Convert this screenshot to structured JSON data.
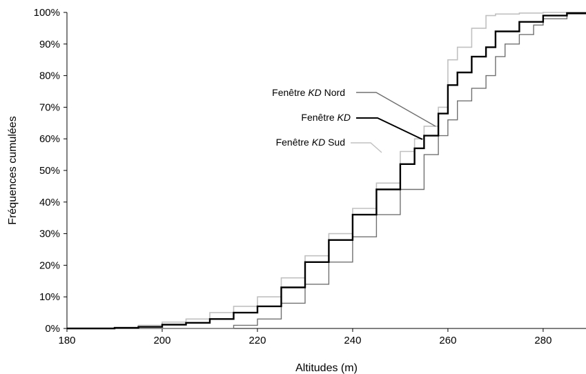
{
  "chart_data": {
    "type": "line",
    "title": "",
    "xlabel": "Altitudes (m)",
    "ylabel": "Fréquences cumulées",
    "xlim": [
      180,
      289
    ],
    "ylim": [
      0,
      100
    ],
    "x_ticks": [
      "180",
      "200",
      "220",
      "240",
      "260",
      "280"
    ],
    "y_ticks": [
      "0%",
      "10%",
      "20%",
      "30%",
      "40%",
      "50%",
      "60%",
      "70%",
      "80%",
      "90%",
      "100%"
    ],
    "grid": false,
    "legend": "inline-labels",
    "series": [
      {
        "name": "Fenêtre KD Nord",
        "label_parts": [
          "Fenêtre ",
          "KD",
          " Nord"
        ],
        "color": "#707070",
        "x": [
          180,
          205,
          209,
          215,
          220,
          225,
          230,
          235,
          240,
          245,
          250,
          255,
          258,
          260,
          262,
          265,
          268,
          270,
          272,
          275,
          278,
          280,
          285,
          289
        ],
        "y": [
          0,
          0,
          0,
          1,
          3,
          8,
          14,
          21,
          29,
          36,
          44,
          55,
          61,
          66,
          72,
          76,
          80,
          86,
          90,
          93,
          96,
          98,
          99.5,
          100
        ]
      },
      {
        "name": "Fenêtre KD",
        "label_parts": [
          "Fenêtre ",
          "KD",
          ""
        ],
        "color": "#000000",
        "x": [
          180,
          190,
          195,
          200,
          205,
          210,
          215,
          220,
          225,
          230,
          235,
          240,
          245,
          250,
          253,
          255,
          258,
          260,
          262,
          265,
          268,
          270,
          275,
          280,
          285,
          289
        ],
        "y": [
          0,
          0.2,
          0.5,
          1.2,
          1.8,
          3,
          5,
          7,
          13,
          21,
          28,
          36,
          44,
          52,
          57,
          61,
          68,
          77,
          81,
          86,
          89,
          94,
          97,
          99,
          99.8,
          100
        ]
      },
      {
        "name": "Fenêtre KD Sud",
        "label_parts": [
          "Fenêtre ",
          "KD",
          " Sud"
        ],
        "color": "#c0c0c0",
        "x": [
          180,
          190,
          195,
          200,
          205,
          210,
          215,
          220,
          225,
          230,
          235,
          240,
          245,
          250,
          253,
          255,
          258,
          260,
          262,
          265,
          268,
          270,
          275,
          280,
          289
        ],
        "y": [
          0,
          0.3,
          1,
          2,
          3,
          5,
          7,
          10,
          16,
          23,
          30,
          38,
          46,
          56,
          60,
          64,
          70,
          85,
          89,
          95,
          99,
          99.5,
          99.8,
          100,
          100
        ]
      }
    ]
  }
}
